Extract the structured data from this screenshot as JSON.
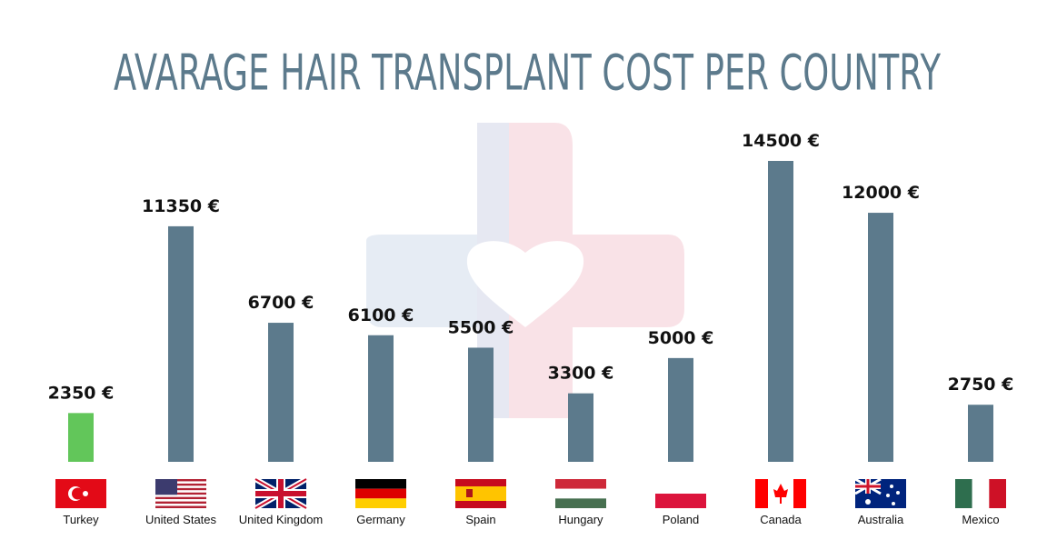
{
  "chart_data": {
    "type": "bar",
    "title": "AVARAGE HAIR TRANSPLANT COST PER COUNTRY",
    "categories": [
      "Turkey",
      "United States",
      "United Kingdom",
      "Germany",
      "Spain",
      "Hungary",
      "Poland",
      "Canada",
      "Australia",
      "Mexico"
    ],
    "values": [
      2350,
      11350,
      6700,
      6100,
      5500,
      3300,
      5000,
      14500,
      12000,
      2750
    ],
    "value_labels": [
      "2350 €",
      "11350 €",
      "6700 €",
      "6100 €",
      "5500 €",
      "3300 €",
      "5000 €",
      "14500 €",
      "12000 €",
      "2750 €"
    ],
    "colors": [
      "#62c65a",
      "#5c7a8c",
      "#5c7a8c",
      "#5c7a8c",
      "#5c7a8c",
      "#5c7a8c",
      "#5c7a8c",
      "#5c7a8c",
      "#5c7a8c",
      "#5c7a8c"
    ],
    "ylim": [
      0,
      14500
    ]
  }
}
